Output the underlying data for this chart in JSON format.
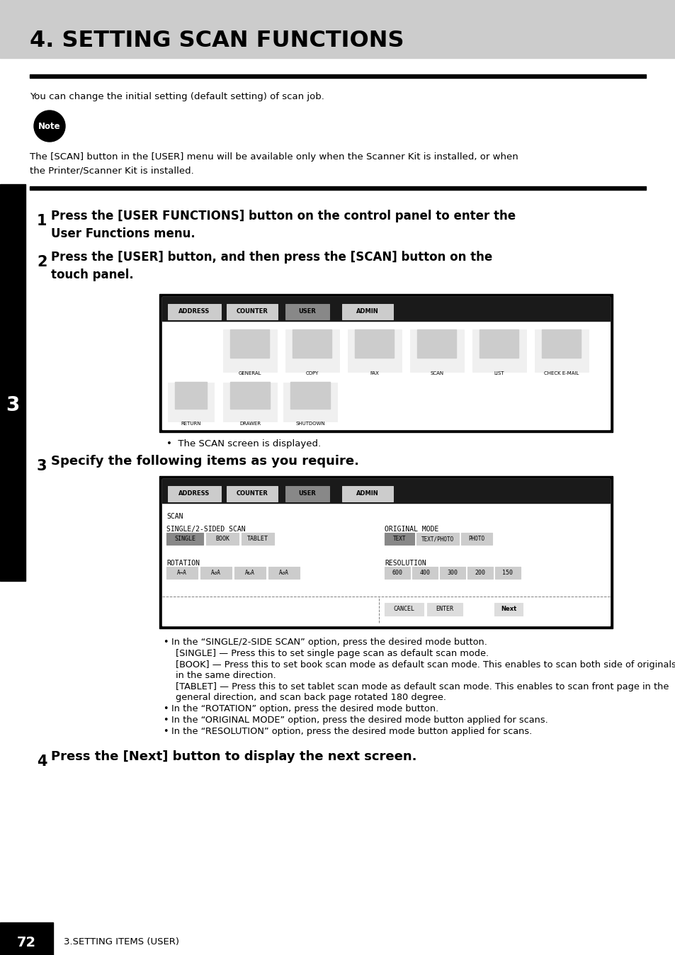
{
  "title": "4. SETTING SCAN FUNCTIONS",
  "title_bg": "#cccccc",
  "page_bg": "#ffffff",
  "title_color": "#000000",
  "body_fontsize": 9.5,
  "step_fontsize": 11,
  "sidebar_label": "3",
  "page_number": "72",
  "footer_text": "3.SETTING ITEMS (USER)",
  "intro_text": "You can change the initial setting (default setting) of scan job.",
  "note_text": "The [SCAN] button in the [USER] menu will be available only when the Scanner Kit is installed, or when\nthe Printer/Scanner Kit is installed.",
  "step1_text": "Press the [USER FUNCTIONS] button on the control panel to enter the\nUser Functions menu.",
  "step2_text": "Press the [USER] button, and then press the [SCAN] button on the\ntouch panel.",
  "step2_sub": "The SCAN screen is displayed.",
  "step3_text": "Specify the following items as you require.",
  "step4_text": "Press the [Next] button to display the next screen.",
  "bullet0": "In the “SINGLE/2-SIDE SCAN” option, press the desired mode button.",
  "bullet1": "[SINGLE] — Press this to set single page scan as default scan mode.",
  "bullet2_1": "[BOOK] — Press this to set book scan mode as default scan mode. This enables to scan both side of originals",
  "bullet2_2": "in the same direction.",
  "bullet3_1": "[TABLET] — Press this to set tablet scan mode as default scan mode. This enables to scan front page in the",
  "bullet3_2": "general direction, and scan back page rotated 180 degree.",
  "bullet4": "In the “ROTATION” option, press the desired mode button.",
  "bullet5": "In the “ORIGINAL MODE” option, press the desired mode button applied for scans.",
  "bullet6": "In the “RESOLUTION” option, press the desired mode button applied for scans."
}
